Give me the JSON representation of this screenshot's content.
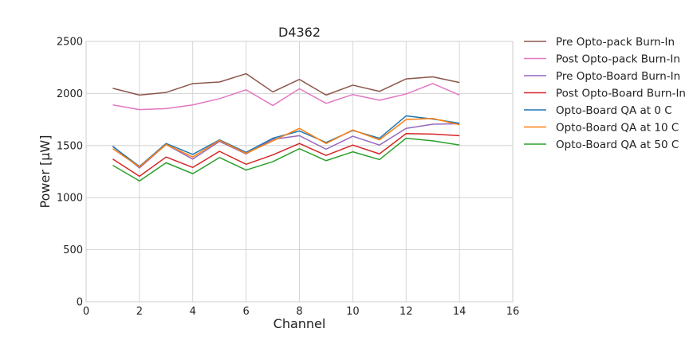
{
  "chart_data": {
    "type": "line",
    "title": "D4362",
    "xlabel": "Channel",
    "ylabel": "Power [μW]",
    "xlim": [
      0,
      16
    ],
    "ylim": [
      0,
      2500
    ],
    "xticks": [
      "0",
      "2",
      "4",
      "6",
      "8",
      "10",
      "12",
      "14",
      "16"
    ],
    "yticks": [
      "0",
      "500",
      "1000",
      "1500",
      "2000",
      "2500"
    ],
    "grid": true,
    "legend_position": "outside-right",
    "x": [
      1,
      2,
      3,
      4,
      5,
      6,
      7,
      8,
      9,
      10,
      11,
      12,
      13,
      14
    ],
    "series": [
      {
        "name": "Pre Opto-pack Burn-In",
        "color": "#8c564b",
        "values": [
          2050,
          1985,
          2010,
          2095,
          2110,
          2190,
          2015,
          2135,
          1985,
          2080,
          2020,
          2140,
          2160,
          2105
        ]
      },
      {
        "name": "Post Opto-pack Burn-In",
        "color": "#e377c2",
        "values": [
          1890,
          1845,
          1855,
          1890,
          1950,
          2035,
          1885,
          2045,
          1905,
          1990,
          1935,
          1995,
          2095,
          1985
        ]
      },
      {
        "name": "Pre Opto-Board Burn-In",
        "color": "#9467bd",
        "values": [
          1495,
          1285,
          1510,
          1370,
          1540,
          1420,
          1560,
          1595,
          1465,
          1590,
          1505,
          1665,
          1705,
          1710
        ]
      },
      {
        "name": "Post Opto-Board Burn-In",
        "color": "#d62728",
        "values": [
          1370,
          1205,
          1390,
          1290,
          1445,
          1320,
          1410,
          1520,
          1405,
          1505,
          1420,
          1615,
          1610,
          1595
        ]
      },
      {
        "name": "Opto-Board QA at 0 C",
        "color": "#1f77b4",
        "values": [
          1490,
          1300,
          1520,
          1415,
          1555,
          1435,
          1570,
          1640,
          1530,
          1645,
          1570,
          1785,
          1755,
          1715
        ]
      },
      {
        "name": "Opto-Board QA at 10 C",
        "color": "#ff7f0e",
        "values": [
          1470,
          1295,
          1510,
          1390,
          1550,
          1425,
          1545,
          1665,
          1520,
          1650,
          1555,
          1750,
          1760,
          1700
        ]
      },
      {
        "name": "Opto-Board QA at 50 C",
        "color": "#2ca02c",
        "values": [
          1310,
          1160,
          1335,
          1230,
          1385,
          1265,
          1345,
          1470,
          1355,
          1440,
          1365,
          1570,
          1545,
          1505
        ]
      }
    ]
  }
}
